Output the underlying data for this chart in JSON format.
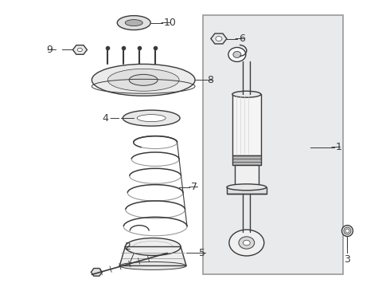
{
  "bg_color": "#ffffff",
  "box_bg": "#e8eaec",
  "box_edge": "#aaaaaa",
  "lc": "#3a3a3a",
  "label_fs": 9,
  "lw": 1.0
}
